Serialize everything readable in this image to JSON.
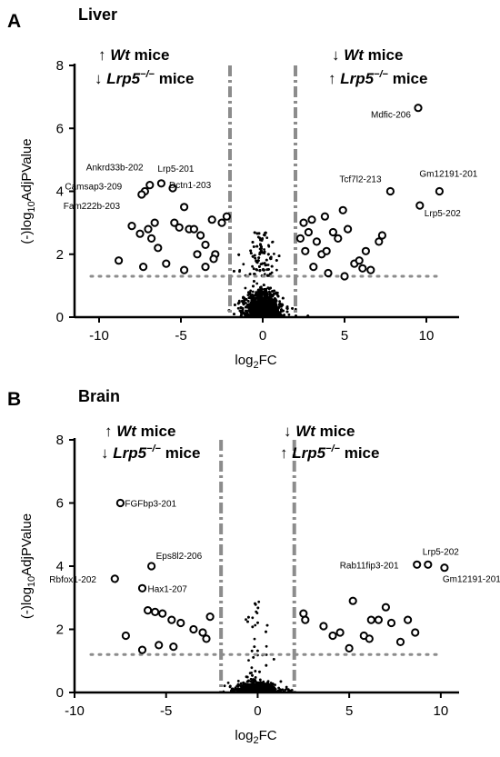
{
  "chart_data": [
    {
      "type": "scatter",
      "panel": "A",
      "title": "Liver",
      "xlabel": "log2FC",
      "ylabel": "(-)log10AdjPValue",
      "xlim": [
        -11.5,
        12
      ],
      "ylim": [
        0,
        8
      ],
      "xticks": [
        -10,
        -5,
        0,
        5,
        10
      ],
      "yticks": [
        0,
        2,
        4,
        6,
        8
      ],
      "grid": false,
      "thresholds": {
        "fc": [
          -2,
          2
        ],
        "pvalue": 1.3
      },
      "left_header": {
        "arrow1": "↑",
        "wt": "Wt",
        "mice1": " mice",
        "arrow2": "↓",
        "lrp": "Lrp5",
        "sup": "−/−",
        "mice2": " mice"
      },
      "right_header": {
        "arrow1": "↓",
        "wt": "Wt",
        "mice1": " mice",
        "arrow2": "↑",
        "lrp": "Lrp5",
        "sup": "−/−",
        "mice2": " mice"
      },
      "highlighted": [
        {
          "x": 9.5,
          "y": 6.65,
          "label": "Mdfic-206"
        },
        {
          "x": 10.8,
          "y": 4.0,
          "label": "Gm12191-201"
        },
        {
          "x": 7.8,
          "y": 4.0,
          "label": "Tcf7l2-213"
        },
        {
          "x": 9.6,
          "y": 3.55,
          "label": "Lrp5-202"
        },
        {
          "x": -6.9,
          "y": 4.2,
          "label": "Ankrd33b-202"
        },
        {
          "x": -7.2,
          "y": 4.0,
          "label": "Camsap3-209"
        },
        {
          "x": -7.4,
          "y": 3.9,
          "label": "Fam222b-203"
        },
        {
          "x": -6.2,
          "y": 4.25,
          "label": "Lrp5-201"
        },
        {
          "x": -5.5,
          "y": 4.1,
          "label": "Dctn1-203"
        },
        {
          "x": -4.8,
          "y": 3.5
        },
        {
          "x": -8.8,
          "y": 1.8
        },
        {
          "x": -8.0,
          "y": 2.9
        },
        {
          "x": -7.5,
          "y": 2.65
        },
        {
          "x": -7.0,
          "y": 2.8
        },
        {
          "x": -6.8,
          "y": 2.5
        },
        {
          "x": -6.6,
          "y": 3.0
        },
        {
          "x": -6.4,
          "y": 2.2
        },
        {
          "x": -5.9,
          "y": 1.7
        },
        {
          "x": -5.4,
          "y": 3.0
        },
        {
          "x": -5.1,
          "y": 2.85
        },
        {
          "x": -4.5,
          "y": 2.8
        },
        {
          "x": -4.2,
          "y": 2.8
        },
        {
          "x": -3.8,
          "y": 2.6
        },
        {
          "x": -3.5,
          "y": 2.3
        },
        {
          "x": -3.1,
          "y": 3.1
        },
        {
          "x": -2.9,
          "y": 2.0
        },
        {
          "x": -2.5,
          "y": 3.0
        },
        {
          "x": -3.0,
          "y": 1.85
        },
        {
          "x": -4.8,
          "y": 1.5
        },
        {
          "x": -7.3,
          "y": 1.6
        },
        {
          "x": -4.0,
          "y": 2.0
        },
        {
          "x": -2.2,
          "y": 3.2
        },
        {
          "x": -3.5,
          "y": 1.6
        },
        {
          "x": 2.5,
          "y": 3.0
        },
        {
          "x": 2.8,
          "y": 2.7
        },
        {
          "x": 3.0,
          "y": 3.1
        },
        {
          "x": 3.3,
          "y": 2.4
        },
        {
          "x": 3.6,
          "y": 2.0
        },
        {
          "x": 3.9,
          "y": 2.1
        },
        {
          "x": 4.3,
          "y": 2.7
        },
        {
          "x": 4.6,
          "y": 2.5
        },
        {
          "x": 4.9,
          "y": 3.4
        },
        {
          "x": 5.2,
          "y": 2.8
        },
        {
          "x": 5.6,
          "y": 1.7
        },
        {
          "x": 5.9,
          "y": 1.8
        },
        {
          "x": 6.3,
          "y": 2.1
        },
        {
          "x": 6.6,
          "y": 1.5
        },
        {
          "x": 7.1,
          "y": 2.4
        },
        {
          "x": 7.3,
          "y": 2.6
        },
        {
          "x": 2.6,
          "y": 2.1
        },
        {
          "x": 3.1,
          "y": 1.6
        },
        {
          "x": 4.0,
          "y": 1.4
        },
        {
          "x": 5.0,
          "y": 1.3
        },
        {
          "x": 3.8,
          "y": 3.2
        },
        {
          "x": 2.3,
          "y": 2.5
        },
        {
          "x": 6.1,
          "y": 1.55
        }
      ]
    },
    {
      "type": "scatter",
      "panel": "B",
      "title": "Brain",
      "xlabel": "log2FC",
      "ylabel": "(-)log10AdjPValue",
      "xlim": [
        -10,
        11
      ],
      "ylim": [
        0,
        8
      ],
      "xticks": [
        -10,
        -5,
        0,
        5,
        10
      ],
      "yticks": [
        0,
        2,
        4,
        6,
        8
      ],
      "grid": false,
      "thresholds": {
        "fc": [
          -2,
          2
        ],
        "pvalue": 1.2
      },
      "left_header": {
        "arrow1": "↑",
        "wt": "Wt",
        "mice1": " mice",
        "arrow2": "↓",
        "lrp": "Lrp5",
        "sup": "−/−",
        "mice2": " mice"
      },
      "right_header": {
        "arrow1": "↓",
        "wt": "Wt",
        "mice1": " mice",
        "arrow2": "↑",
        "lrp": "Lrp5",
        "sup": "−/−",
        "mice2": " mice"
      },
      "highlighted": [
        {
          "x": -7.5,
          "y": 6.0,
          "label": "FGFbp3-201"
        },
        {
          "x": -5.8,
          "y": 4.0,
          "label": "Eps8l2-206"
        },
        {
          "x": -7.8,
          "y": 3.6,
          "label": "Rbfox1-202"
        },
        {
          "x": -6.3,
          "y": 3.3,
          "label": "Hax1-207"
        },
        {
          "x": 9.3,
          "y": 4.05,
          "label": "Lrp5-202"
        },
        {
          "x": 10.2,
          "y": 3.95,
          "label": "Gm12191-201"
        },
        {
          "x": 8.7,
          "y": 4.05,
          "label": "Rab11fip3-201"
        },
        {
          "x": -6.0,
          "y": 2.6
        },
        {
          "x": -5.6,
          "y": 2.55
        },
        {
          "x": -5.2,
          "y": 2.5
        },
        {
          "x": -4.7,
          "y": 2.3
        },
        {
          "x": -4.2,
          "y": 2.2
        },
        {
          "x": -3.5,
          "y": 2.0
        },
        {
          "x": -3.0,
          "y": 1.9
        },
        {
          "x": -2.8,
          "y": 1.7
        },
        {
          "x": -7.2,
          "y": 1.8
        },
        {
          "x": -6.3,
          "y": 1.35
        },
        {
          "x": -5.4,
          "y": 1.5
        },
        {
          "x": -4.6,
          "y": 1.45
        },
        {
          "x": -2.6,
          "y": 2.4
        },
        {
          "x": 2.5,
          "y": 2.5
        },
        {
          "x": 2.6,
          "y": 2.3
        },
        {
          "x": 3.6,
          "y": 2.1
        },
        {
          "x": 4.1,
          "y": 1.8
        },
        {
          "x": 4.5,
          "y": 1.9
        },
        {
          "x": 5.2,
          "y": 2.9
        },
        {
          "x": 5.8,
          "y": 1.8
        },
        {
          "x": 6.2,
          "y": 2.3
        },
        {
          "x": 6.6,
          "y": 2.3
        },
        {
          "x": 7.0,
          "y": 2.7
        },
        {
          "x": 7.3,
          "y": 2.2
        },
        {
          "x": 7.8,
          "y": 1.6
        },
        {
          "x": 8.2,
          "y": 2.3
        },
        {
          "x": 8.6,
          "y": 1.9
        },
        {
          "x": 5.0,
          "y": 1.4
        },
        {
          "x": 6.1,
          "y": 1.7
        }
      ]
    }
  ]
}
